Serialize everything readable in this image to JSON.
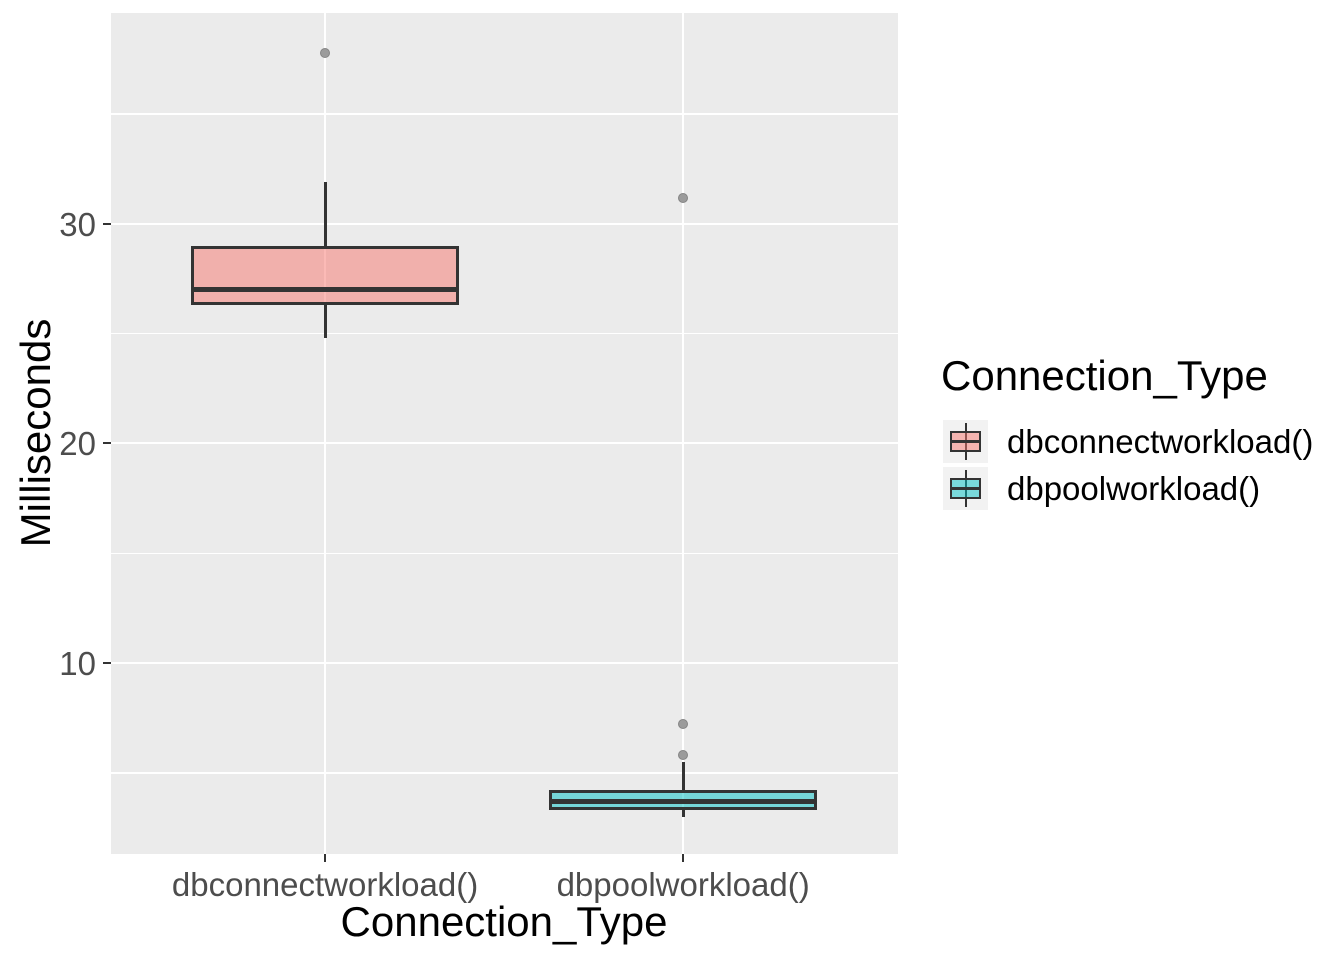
{
  "chart_data": {
    "type": "boxplot",
    "title": "",
    "xlabel": "Connection_Type",
    "ylabel": "Milliseconds",
    "categories": [
      "dbconnectworkload()",
      "dbpoolworkload()"
    ],
    "y_axis": {
      "ticks": [
        30,
        20,
        10
      ],
      "minor_ticks": [
        35,
        25,
        15,
        5
      ],
      "range": [
        1.3,
        39.61
      ]
    },
    "grid": "on",
    "series": [
      {
        "name": "dbconnectworkload()",
        "fill": "rgba(248,118,109,0.5)",
        "lower_whisker": 24.8,
        "q1": 26.3,
        "median": 27.0,
        "q3": 29.0,
        "upper_whisker": 31.9,
        "outliers": [
          37.8
        ]
      },
      {
        "name": "dbpoolworkload()",
        "fill": "rgba(0,191,196,0.5)",
        "lower_whisker": 3.0,
        "q1": 3.3,
        "median": 3.7,
        "q3": 4.2,
        "upper_whisker": 5.5,
        "outliers": [
          5.8,
          7.2,
          31.2
        ]
      }
    ],
    "legend": {
      "position": "right",
      "title": "Connection_Type",
      "entries": [
        {
          "label": "dbconnectworkload()",
          "fill": "rgba(248,118,109,0.5)"
        },
        {
          "label": "dbpoolworkload()",
          "fill": "rgba(0,191,196,0.5)"
        }
      ]
    },
    "colors": {
      "panel_bg": "#EBEBEB",
      "grid": "#FFFFFF",
      "box_border": "#333333",
      "median": "#333333",
      "outlier_fill": "#9B9B9B",
      "outlier_stroke": "#848484",
      "tick_mark": "#333333",
      "tick_label": "#4D4D4D",
      "axis_title": "#000000",
      "legend_key_bg": "#F2F2F2"
    }
  }
}
